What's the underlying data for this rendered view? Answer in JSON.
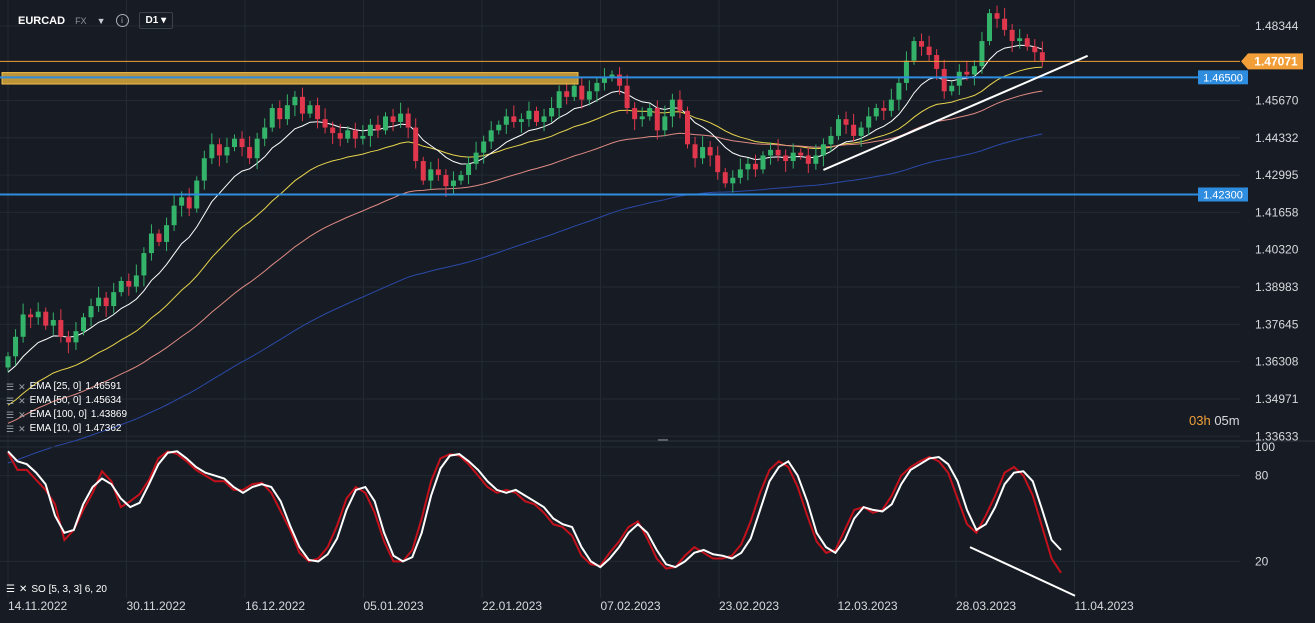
{
  "header": {
    "symbol": "EURCAD",
    "market": "FX",
    "timeframe": "D1",
    "info_icon": "info-icon"
  },
  "timer": {
    "hours": "03h",
    "minutes": "05m"
  },
  "legend": [
    {
      "label": "EMA [25, 0]",
      "value": "1.46591"
    },
    {
      "label": "EMA [50, 0]",
      "value": "1.45634"
    },
    {
      "label": "EMA [100, 0]",
      "value": "1.43869"
    },
    {
      "label": "EMA [10, 0]",
      "value": "1.47362"
    }
  ],
  "so_label": "SO [5, 3, 3] 6, 20",
  "colors": {
    "bg": "#171c24",
    "grid": "#232a33",
    "up": "#34b36a",
    "down": "#e0374c",
    "ema10": "#ffffff",
    "ema25": "#e8d44d",
    "ema50": "#e08a83",
    "ema100": "#2a49a8",
    "level": "#2f8de0",
    "price": "#f29f39",
    "zone": "#d9a83a",
    "so_k": "#ffffff",
    "so_d": "#c4111c"
  },
  "chart_data": [
    {
      "type": "candlestick",
      "symbol": "EURCAD",
      "timeframe": "D1",
      "x_ticks": [
        "14.11.2022",
        "30.11.2022",
        "16.12.2022",
        "05.01.2023",
        "22.01.2023",
        "07.02.2023",
        "23.02.2023",
        "12.03.2023",
        "28.03.2023",
        "11.04.2023"
      ],
      "y_ticks": [
        1.48344,
        1.4567,
        1.44332,
        1.42995,
        1.41658,
        1.4032,
        1.38983,
        1.37645,
        1.36308,
        1.34971,
        1.33633
      ],
      "ylim": [
        1.335,
        1.492
      ],
      "last_price": 1.47071,
      "levels": [
        1.465,
        1.423
      ],
      "supply_zone": [
        1.4626,
        1.4667
      ],
      "close": [
        1.365,
        1.372,
        1.38,
        1.379,
        1.381,
        1.376,
        1.378,
        1.372,
        1.37,
        1.374,
        1.379,
        1.383,
        1.386,
        1.383,
        1.388,
        1.392,
        1.39,
        1.394,
        1.402,
        1.409,
        1.406,
        1.412,
        1.419,
        1.422,
        1.418,
        1.428,
        1.436,
        1.441,
        1.437,
        1.44,
        1.443,
        1.44,
        1.436,
        1.443,
        1.447,
        1.454,
        1.45,
        1.455,
        1.458,
        1.452,
        1.455,
        1.45,
        1.447,
        1.445,
        1.443,
        1.446,
        1.443,
        1.444,
        1.448,
        1.446,
        1.451,
        1.449,
        1.452,
        1.447,
        1.435,
        1.428,
        1.432,
        1.43,
        1.426,
        1.428,
        1.43,
        1.434,
        1.438,
        1.442,
        1.446,
        1.448,
        1.451,
        1.449,
        1.45,
        1.453,
        1.449,
        1.451,
        1.454,
        1.46,
        1.458,
        1.462,
        1.457,
        1.46,
        1.463,
        1.465,
        1.466,
        1.462,
        1.454,
        1.45,
        1.451,
        1.454,
        1.446,
        1.451,
        1.457,
        1.453,
        1.441,
        1.436,
        1.44,
        1.437,
        1.431,
        1.427,
        1.429,
        1.432,
        1.434,
        1.432,
        1.437,
        1.439,
        1.437,
        1.435,
        1.438,
        1.437,
        1.434,
        1.437,
        1.441,
        1.444,
        1.45,
        1.448,
        1.444,
        1.447,
        1.451,
        1.454,
        1.453,
        1.457,
        1.463,
        1.471,
        1.478,
        1.476,
        1.473,
        1.468,
        1.46,
        1.462,
        1.467,
        1.466,
        1.469,
        1.478,
        1.488,
        1.486,
        1.482,
        1.478,
        1.479,
        1.476,
        1.474,
        1.471
      ],
      "ema": [
        {
          "name": "EMA [25, 0]",
          "period": 25,
          "value": 1.46591
        },
        {
          "name": "EMA [50, 0]",
          "period": 50,
          "value": 1.45634
        },
        {
          "name": "EMA [100, 0]",
          "period": 100,
          "value": 1.43869
        },
        {
          "name": "EMA [10, 0]",
          "period": 10,
          "value": 1.47362
        }
      ]
    },
    {
      "type": "line",
      "name": "SO [5, 3, 3] 6, 20",
      "y_ticks": [
        100,
        80,
        20
      ],
      "ylim": [
        0,
        100
      ],
      "k": [
        97,
        90,
        88,
        82,
        74,
        52,
        40,
        42,
        60,
        72,
        78,
        74,
        64,
        58,
        61,
        74,
        88,
        96,
        97,
        92,
        86,
        82,
        80,
        78,
        72,
        68,
        72,
        74,
        72,
        62,
        45,
        30,
        21,
        20,
        25,
        36,
        56,
        70,
        72,
        62,
        40,
        24,
        20,
        23,
        40,
        66,
        85,
        94,
        95,
        90,
        84,
        76,
        70,
        68,
        70,
        66,
        62,
        58,
        50,
        46,
        44,
        30,
        20,
        16,
        22,
        30,
        40,
        46,
        40,
        28,
        18,
        16,
        20,
        26,
        28,
        25,
        24,
        22,
        26,
        36,
        56,
        76,
        86,
        90,
        80,
        62,
        40,
        30,
        26,
        35,
        50,
        58,
        56,
        55,
        60,
        74,
        84,
        88,
        92,
        93,
        88,
        76,
        56,
        42,
        46,
        58,
        74,
        82,
        83,
        76,
        56,
        35,
        28
      ],
      "d": [
        96,
        84,
        84,
        77,
        70,
        60,
        35,
        42,
        56,
        68,
        83,
        76,
        58,
        62,
        67,
        77,
        92,
        97,
        95,
        90,
        84,
        80,
        76,
        76,
        70,
        70,
        74,
        75,
        68,
        55,
        42,
        26,
        20,
        22,
        30,
        45,
        64,
        72,
        68,
        54,
        34,
        20,
        20,
        28,
        50,
        76,
        92,
        95,
        94,
        88,
        80,
        72,
        68,
        70,
        68,
        62,
        60,
        54,
        46,
        44,
        38,
        24,
        18,
        17,
        26,
        34,
        44,
        48,
        36,
        22,
        15,
        16,
        24,
        30,
        26,
        22,
        22,
        24,
        32,
        48,
        68,
        84,
        90,
        86,
        72,
        52,
        34,
        26,
        28,
        42,
        56,
        58,
        54,
        56,
        66,
        80,
        86,
        90,
        93,
        90,
        82,
        64,
        46,
        40,
        52,
        66,
        82,
        86,
        80,
        66,
        44,
        22,
        12
      ]
    }
  ]
}
